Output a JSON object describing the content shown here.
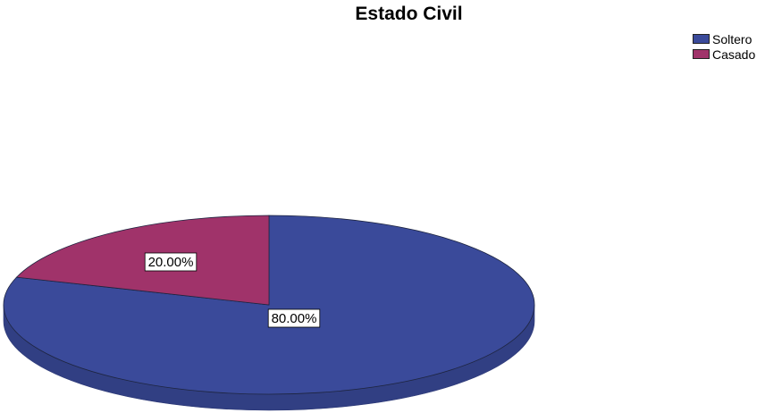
{
  "chart_data": {
    "type": "pie",
    "title": "Estado Civil",
    "categories": [
      "Soltero",
      "Casado"
    ],
    "values": [
      80.0,
      20.0
    ],
    "data_labels": [
      "80.00%",
      "20.00%"
    ],
    "colors": [
      "#3a4a9a",
      "#a0336a"
    ],
    "legend_position": "top-right",
    "style": "3d-tilted"
  }
}
